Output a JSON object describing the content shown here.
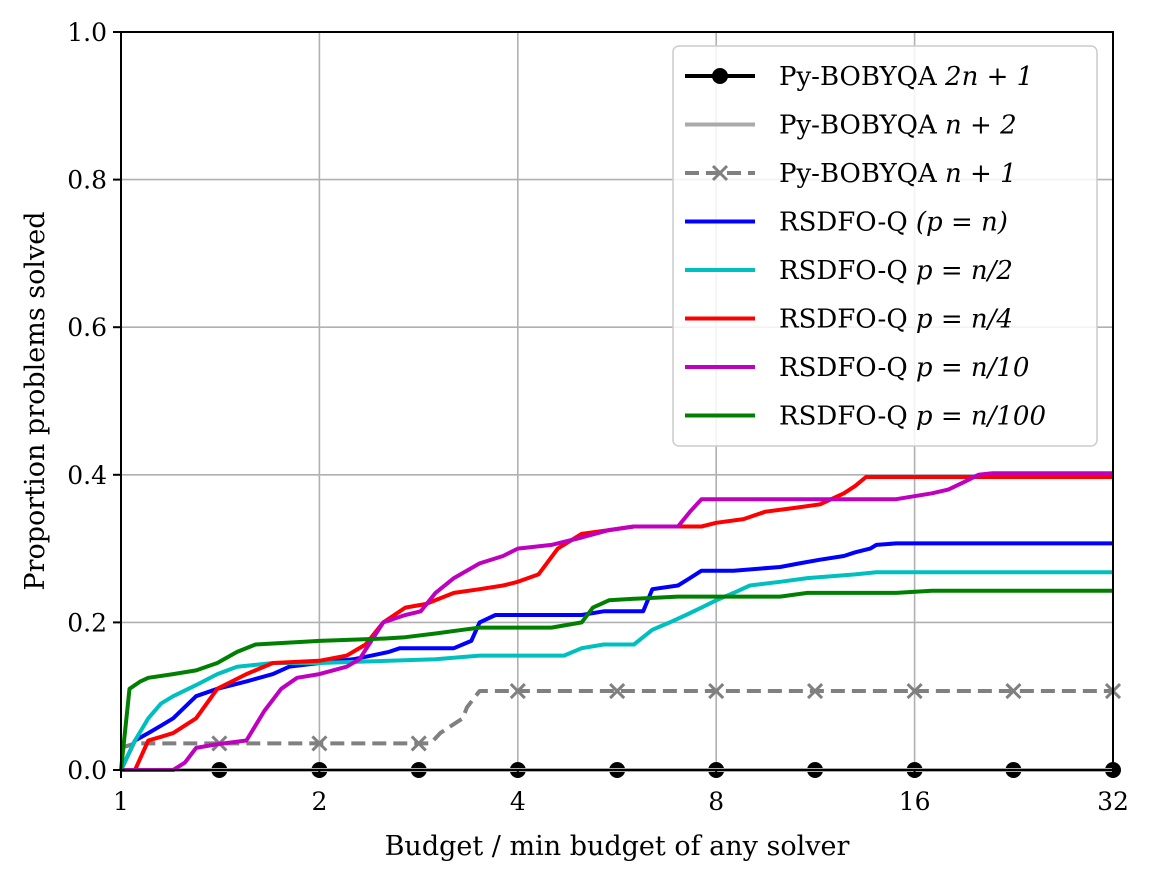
{
  "chart_data": {
    "type": "line",
    "title": "",
    "xlabel": "Budget / min budget of any solver",
    "ylabel": "Proportion problems solved",
    "xscale": "log2",
    "xlim": [
      1,
      32
    ],
    "ylim": [
      0,
      1
    ],
    "xticks": [
      1,
      2,
      4,
      8,
      16,
      32
    ],
    "xtick_labels": [
      "1",
      "2",
      "4",
      "8",
      "16",
      "32"
    ],
    "yticks": [
      0,
      0.2,
      0.4,
      0.6,
      0.8,
      1.0
    ],
    "ytick_labels": [
      "0.0",
      "0.2",
      "0.4",
      "0.6",
      "0.8",
      "1.0"
    ],
    "grid": true,
    "legend_position": "top-right",
    "series": [
      {
        "name": "Py-BOBYQA 2n+1",
        "label_main": "Py-BOBYQA ",
        "label_math": "2n + 1",
        "color": "#000000",
        "style": "solid",
        "marker": "circle",
        "x": [
          1,
          32
        ],
        "y": [
          0,
          0
        ],
        "marker_x": [
          1.41,
          2,
          2.83,
          4,
          5.66,
          8,
          11.3,
          16,
          22.6,
          32
        ]
      },
      {
        "name": "Py-BOBYQA n+2",
        "label_main": "Py-BOBYQA ",
        "label_math": "n + 2",
        "color": "#aaaaaa",
        "style": "solid",
        "marker": "none",
        "x": [
          1,
          32
        ],
        "y": [
          0,
          0
        ]
      },
      {
        "name": "Py-BOBYQA n+1",
        "label_main": "Py-BOBYQA ",
        "label_math": "n + 1",
        "color": "#808080",
        "style": "dashed",
        "marker": "x",
        "x": [
          1,
          1.05,
          2.95,
          3.05,
          3.3,
          3.35,
          3.5,
          32
        ],
        "y": [
          0.03,
          0.036,
          0.036,
          0.05,
          0.07,
          0.085,
          0.107,
          0.107
        ],
        "marker_x": [
          1.41,
          2,
          2.83,
          4,
          5.66,
          8,
          11.3,
          16,
          22.6,
          32
        ]
      },
      {
        "name": "RSDFO-Q (p = n)",
        "label_main": "RSDFO-Q ",
        "label_math": "(p = n)",
        "color": "#0000ff",
        "style": "solid",
        "marker": "none",
        "x": [
          1,
          1.05,
          1.1,
          1.15,
          1.2,
          1.3,
          1.4,
          1.55,
          1.7,
          1.8,
          2,
          2.25,
          2.4,
          2.55,
          2.65,
          3.2,
          3.4,
          3.5,
          3.7,
          4,
          5,
          5.4,
          6.2,
          6.4,
          7,
          7.3,
          7.6,
          8.5,
          10,
          10.7,
          11.5,
          12.5,
          13,
          13.7,
          14,
          15,
          32
        ],
        "y": [
          0,
          0.04,
          0.05,
          0.06,
          0.07,
          0.1,
          0.11,
          0.12,
          0.13,
          0.14,
          0.145,
          0.15,
          0.155,
          0.16,
          0.165,
          0.165,
          0.175,
          0.2,
          0.21,
          0.21,
          0.21,
          0.215,
          0.215,
          0.245,
          0.25,
          0.26,
          0.27,
          0.27,
          0.275,
          0.28,
          0.285,
          0.29,
          0.295,
          0.3,
          0.305,
          0.307,
          0.307
        ]
      },
      {
        "name": "RSDFO-Q p = n/2",
        "label_main": "RSDFO-Q ",
        "label_math": "p = n/2",
        "color": "#00bfbf",
        "style": "solid",
        "marker": "none",
        "x": [
          1,
          1.05,
          1.1,
          1.15,
          1.2,
          1.3,
          1.4,
          1.5,
          1.7,
          2,
          3,
          3.5,
          4,
          4.7,
          5,
          5.4,
          6,
          6.4,
          6.8,
          7.2,
          7.6,
          8,
          8.5,
          9,
          10,
          11,
          13,
          14,
          32
        ],
        "y": [
          0,
          0.04,
          0.07,
          0.09,
          0.1,
          0.115,
          0.13,
          0.14,
          0.145,
          0.145,
          0.15,
          0.155,
          0.155,
          0.155,
          0.165,
          0.17,
          0.17,
          0.19,
          0.2,
          0.21,
          0.22,
          0.23,
          0.24,
          0.25,
          0.255,
          0.26,
          0.265,
          0.268,
          0.268
        ]
      },
      {
        "name": "RSDFO-Q p = n/4",
        "label_main": "RSDFO-Q ",
        "label_math": "p = n/4",
        "color": "#ff0000",
        "style": "solid",
        "marker": "none",
        "x": [
          1,
          1.05,
          1.1,
          1.15,
          1.2,
          1.3,
          1.4,
          1.55,
          1.7,
          2,
          2.2,
          2.35,
          2.5,
          2.7,
          2.9,
          3.2,
          3.5,
          3.8,
          4,
          4.3,
          4.6,
          5,
          5.5,
          6,
          7,
          7.6,
          8,
          8.8,
          9.5,
          10.5,
          11.5,
          12.5,
          13,
          13.5,
          32
        ],
        "y": [
          0,
          0.0,
          0.04,
          0.045,
          0.05,
          0.07,
          0.11,
          0.13,
          0.145,
          0.148,
          0.155,
          0.17,
          0.2,
          0.22,
          0.225,
          0.24,
          0.245,
          0.25,
          0.255,
          0.265,
          0.3,
          0.32,
          0.325,
          0.33,
          0.33,
          0.33,
          0.335,
          0.34,
          0.35,
          0.355,
          0.36,
          0.375,
          0.385,
          0.397,
          0.397
        ]
      },
      {
        "name": "RSDFO-Q p = n/10",
        "label_main": "RSDFO-Q ",
        "label_math": "p = n/10",
        "color": "#bf00bf",
        "style": "solid",
        "marker": "none",
        "x": [
          1,
          1.2,
          1.25,
          1.3,
          1.4,
          1.55,
          1.65,
          1.75,
          1.85,
          2,
          2.2,
          2.3,
          2.5,
          2.7,
          2.85,
          3.0,
          3.2,
          3.5,
          3.8,
          4,
          4.5,
          5,
          5.5,
          6,
          7,
          7.3,
          7.6,
          8,
          10,
          15,
          17,
          18,
          19,
          20,
          21,
          32
        ],
        "y": [
          0,
          0,
          0.01,
          0.03,
          0.035,
          0.04,
          0.08,
          0.11,
          0.125,
          0.13,
          0.14,
          0.15,
          0.2,
          0.21,
          0.215,
          0.24,
          0.26,
          0.28,
          0.29,
          0.3,
          0.305,
          0.315,
          0.325,
          0.33,
          0.33,
          0.35,
          0.367,
          0.367,
          0.367,
          0.367,
          0.375,
          0.38,
          0.39,
          0.4,
          0.402,
          0.402
        ]
      },
      {
        "name": "RSDFO-Q p = n/100",
        "label_main": "RSDFO-Q ",
        "label_math": "p = n/100",
        "color": "#008000",
        "style": "solid",
        "marker": "none",
        "x": [
          1,
          1.03,
          1.07,
          1.1,
          1.2,
          1.3,
          1.4,
          1.5,
          1.6,
          2,
          2.5,
          2.7,
          3,
          3.3,
          3.5,
          4,
          4.5,
          5,
          5.2,
          5.5,
          6,
          7,
          8,
          10,
          11,
          15,
          17,
          32
        ],
        "y": [
          0,
          0.11,
          0.12,
          0.125,
          0.13,
          0.135,
          0.145,
          0.16,
          0.17,
          0.175,
          0.178,
          0.18,
          0.185,
          0.19,
          0.193,
          0.193,
          0.193,
          0.2,
          0.22,
          0.23,
          0.232,
          0.235,
          0.235,
          0.235,
          0.24,
          0.24,
          0.243,
          0.243
        ]
      }
    ]
  }
}
